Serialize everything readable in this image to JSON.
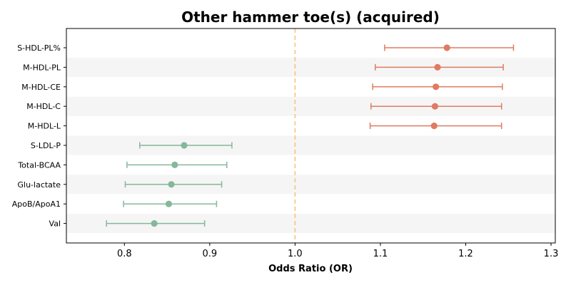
{
  "chart_data": {
    "type": "forest",
    "title": "Other hammer toe(s) (acquired)",
    "xlabel": "Odds Ratio (OR)",
    "ylabel": "",
    "xlim": [
      0.732,
      1.305
    ],
    "xticks": [
      "0.8",
      "0.9",
      "1.0",
      "1.1",
      "1.2",
      "1.3"
    ],
    "reference_line": 1.0,
    "grid": false,
    "colors": {
      "positive": "#e07b62",
      "negative": "#85b89a",
      "reference": "#f5c27a",
      "band": "#f5f5f5"
    },
    "rows": [
      {
        "label": "S-HDL-PL%",
        "or": 1.178,
        "lower": 1.105,
        "upper": 1.256,
        "direction": "positive"
      },
      {
        "label": "M-HDL-PL",
        "or": 1.167,
        "lower": 1.094,
        "upper": 1.244,
        "direction": "positive"
      },
      {
        "label": "M-HDL-CE",
        "or": 1.165,
        "lower": 1.091,
        "upper": 1.243,
        "direction": "positive"
      },
      {
        "label": "M-HDL-C",
        "or": 1.164,
        "lower": 1.089,
        "upper": 1.242,
        "direction": "positive"
      },
      {
        "label": "M-HDL-L",
        "or": 1.163,
        "lower": 1.088,
        "upper": 1.242,
        "direction": "positive"
      },
      {
        "label": "S-LDL-P",
        "or": 0.87,
        "lower": 0.818,
        "upper": 0.926,
        "direction": "negative"
      },
      {
        "label": "Total-BCAA",
        "or": 0.859,
        "lower": 0.803,
        "upper": 0.92,
        "direction": "negative"
      },
      {
        "label": "Glu-lactate",
        "or": 0.855,
        "lower": 0.801,
        "upper": 0.914,
        "direction": "negative"
      },
      {
        "label": "ApoB/ApoA1",
        "or": 0.852,
        "lower": 0.799,
        "upper": 0.908,
        "direction": "negative"
      },
      {
        "label": "Val",
        "or": 0.835,
        "lower": 0.779,
        "upper": 0.894,
        "direction": "negative"
      }
    ]
  }
}
